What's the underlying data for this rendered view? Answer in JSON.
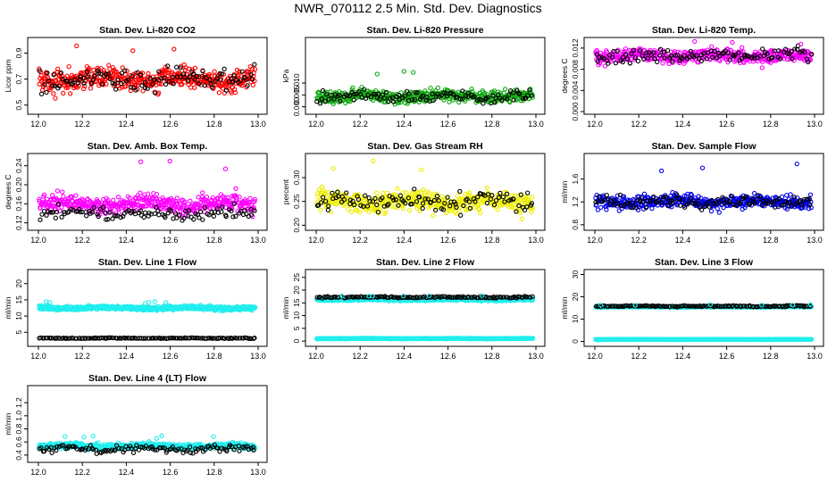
{
  "main_title": "NWR_070112  2.5 Min. Std. Dev. Diagnostics",
  "chart_data": [
    {
      "type": "scatter",
      "title": "Stan. Dev. Li-820 CO2",
      "xlabel": "",
      "ylabel": "Licor ppm",
      "xlim": [
        12.0,
        13.0
      ],
      "ylim": [
        0.45,
        1.0
      ],
      "xticks": [
        "12.0",
        "12.2",
        "12.4",
        "12.6",
        "12.8",
        "13.0"
      ],
      "yticks": [
        "0.5",
        "0.7",
        "0.9"
      ],
      "ytick_values": [
        0.5,
        0.7,
        0.9
      ],
      "color": "#ff0000",
      "series": [
        {
          "name": "main",
          "color": "#ff0000",
          "center": 0.7,
          "spread": 0.09,
          "lo": 0.48,
          "hi": 0.97,
          "count": 430
        },
        {
          "name": "black",
          "color": "#000000",
          "center": 0.7,
          "spread": 0.09,
          "lo": 0.5,
          "hi": 0.95,
          "count": 110
        }
      ]
    },
    {
      "type": "scatter",
      "title": "Stan. Dev. Li-820 Pressure",
      "xlabel": "",
      "ylabel": "kPa",
      "xlim": [
        12.0,
        13.0
      ],
      "ylim": [
        -0.002,
        0.028
      ],
      "xticks": [
        "12.0",
        "12.2",
        "12.4",
        "12.6",
        "12.8",
        "13.0"
      ],
      "yticks": [
        "0.000",
        "0.005",
        "0.010"
      ],
      "ytick_values": [
        0.0,
        0.005,
        0.01
      ],
      "color": "#00aa00",
      "series": [
        {
          "name": "main",
          "color": "#11aa11",
          "center": 0.0045,
          "spread": 0.0028,
          "lo": 0.0,
          "hi": 0.016,
          "count": 430
        },
        {
          "name": "black",
          "color": "#000000",
          "center": 0.0045,
          "spread": 0.0028,
          "lo": 0.0005,
          "hi": 0.014,
          "count": 110
        }
      ]
    },
    {
      "type": "scatter",
      "title": "Stan. Dev. Li-820 Temp.",
      "xlabel": "",
      "ylabel": "degrees C",
      "xlim": [
        12.0,
        13.0
      ],
      "ylim": [
        0.0,
        0.0135
      ],
      "xticks": [
        "12.0",
        "12.2",
        "12.4",
        "12.6",
        "12.8",
        "13.0"
      ],
      "yticks": [
        "0.000",
        "0.004",
        "0.008",
        "0.012"
      ],
      "ytick_values": [
        0.0,
        0.004,
        0.008,
        0.012
      ],
      "color": "#ff00ff",
      "series": [
        {
          "name": "main",
          "color": "#ff00ff",
          "center": 0.0105,
          "spread": 0.0014,
          "lo": 0.007,
          "hi": 0.0135,
          "count": 430
        },
        {
          "name": "black",
          "color": "#000000",
          "center": 0.0105,
          "spread": 0.0014,
          "lo": 0.007,
          "hi": 0.0135,
          "count": 110
        }
      ]
    },
    {
      "type": "scatter",
      "title": "Stan. Dev. Amb. Box Temp.",
      "xlabel": "",
      "ylabel": "degrees C",
      "xlim": [
        12.0,
        13.0
      ],
      "ylim": [
        0.11,
        0.26
      ],
      "xticks": [
        "12.0",
        "12.2",
        "12.4",
        "12.6",
        "12.8",
        "13.0"
      ],
      "yticks": [
        "0.12",
        "0.16",
        "0.20",
        "0.24"
      ],
      "ytick_values": [
        0.12,
        0.16,
        0.2,
        0.24
      ],
      "color": "#ff00ff",
      "series": [
        {
          "name": "main",
          "color": "#ff00ff",
          "center": 0.16,
          "spread": 0.02,
          "lo": 0.12,
          "hi": 0.25,
          "count": 430
        },
        {
          "name": "black",
          "color": "#000000",
          "center": 0.14,
          "spread": 0.015,
          "lo": 0.115,
          "hi": 0.19,
          "count": 110
        }
      ]
    },
    {
      "type": "scatter",
      "title": "Stan. Dev. Gas Stream RH",
      "xlabel": "",
      "ylabel": "percent",
      "xlim": [
        12.0,
        13.0
      ],
      "ylim": [
        0.195,
        0.345
      ],
      "xticks": [
        "12.0",
        "12.2",
        "12.4",
        "12.6",
        "12.8",
        "13.0"
      ],
      "yticks": [
        "0.20",
        "0.25",
        "0.30"
      ],
      "ytick_values": [
        0.2,
        0.25,
        0.3
      ],
      "color": "#ffff00",
      "series": [
        {
          "name": "main",
          "color": "#eeee00",
          "center": 0.25,
          "spread": 0.022,
          "lo": 0.2,
          "hi": 0.34,
          "count": 430
        },
        {
          "name": "black",
          "color": "#000000",
          "center": 0.25,
          "spread": 0.022,
          "lo": 0.2,
          "hi": 0.32,
          "count": 110
        }
      ]
    },
    {
      "type": "scatter",
      "title": "Stan. Dev. Sample Flow",
      "xlabel": "",
      "ylabel": "ml/min",
      "xlim": [
        12.0,
        13.0
      ],
      "ylim": [
        0.75,
        2.0
      ],
      "xticks": [
        "12.0",
        "12.2",
        "12.4",
        "12.6",
        "12.8",
        "13.0"
      ],
      "yticks": [
        "0.8",
        "1.2",
        "1.6"
      ],
      "ytick_values": [
        0.8,
        1.2,
        1.6
      ],
      "color": "#0000ff",
      "series": [
        {
          "name": "main",
          "color": "#0000ee",
          "center": 1.2,
          "spread": 0.12,
          "lo": 0.8,
          "hi": 1.95,
          "count": 430
        },
        {
          "name": "black",
          "color": "#000000",
          "center": 1.2,
          "spread": 0.1,
          "lo": 0.9,
          "hi": 1.7,
          "count": 110
        }
      ]
    },
    {
      "type": "scatter",
      "title": "Stan. Dev. Line 1 Flow",
      "xlabel": "",
      "ylabel": "ml/min",
      "xlim": [
        12.0,
        13.0
      ],
      "ylim": [
        1.5,
        23.5
      ],
      "xticks": [
        "12.0",
        "12.2",
        "12.4",
        "12.6",
        "12.8",
        "13.0"
      ],
      "yticks": [
        "5",
        "10",
        "15",
        "20"
      ],
      "ytick_values": [
        5,
        10,
        15,
        20
      ],
      "color": "#00ffff",
      "series": [
        {
          "name": "main",
          "color": "#22eeee",
          "center": 12.5,
          "spread": 0.6,
          "lo": 10.5,
          "hi": 14.5,
          "count": 700
        },
        {
          "name": "black",
          "color": "#000000",
          "center": 3.2,
          "spread": 0.15,
          "lo": 2.8,
          "hi": 3.8,
          "count": 140
        }
      ]
    },
    {
      "type": "scatter",
      "title": "Stan. Dev. Line 2 Flow",
      "xlabel": "",
      "ylabel": "ml/min",
      "xlim": [
        12.0,
        13.0
      ],
      "ylim": [
        -1,
        27
      ],
      "xticks": [
        "12.0",
        "12.2",
        "12.4",
        "12.6",
        "12.8",
        "13.0"
      ],
      "yticks": [
        "0",
        "5",
        "10",
        "15",
        "20",
        "25"
      ],
      "ytick_values": [
        0,
        5,
        10,
        15,
        20,
        25
      ],
      "color": "#00ffff",
      "series": [
        {
          "name": "main",
          "color": "#22eeee",
          "center": 16.3,
          "spread": 0.5,
          "lo": 14.8,
          "hi": 18.0,
          "count": 600
        },
        {
          "name": "low",
          "color": "#22eeee",
          "center": 1.0,
          "spread": 0.15,
          "lo": 0.5,
          "hi": 1.6,
          "count": 600
        },
        {
          "name": "black",
          "color": "#000000",
          "center": 17.2,
          "spread": 0.35,
          "lo": 16.2,
          "hi": 19.0,
          "count": 140
        }
      ]
    },
    {
      "type": "scatter",
      "title": "Stan. Dev. Line 3 Flow",
      "xlabel": "",
      "ylabel": "ml/min",
      "xlim": [
        12.0,
        13.0
      ],
      "ylim": [
        -1,
        31
      ],
      "xticks": [
        "12.0",
        "12.2",
        "12.4",
        "12.6",
        "12.8",
        "13.0"
      ],
      "yticks": [
        "0",
        "10",
        "20",
        "30"
      ],
      "ytick_values": [
        0,
        10,
        20,
        30
      ],
      "color": "#00ffff",
      "series": [
        {
          "name": "main",
          "color": "#22eeee",
          "center": 15.5,
          "spread": 0.25,
          "lo": 14.8,
          "hi": 16.5,
          "count": 500
        },
        {
          "name": "low",
          "color": "#22eeee",
          "center": 0.9,
          "spread": 0.12,
          "lo": 0.5,
          "hi": 1.4,
          "count": 600
        },
        {
          "name": "black",
          "color": "#000000",
          "center": 15.8,
          "spread": 0.3,
          "lo": 14.5,
          "hi": 17.0,
          "count": 140
        }
      ]
    },
    {
      "type": "scatter",
      "title": "Stan. Dev. Line 4 (LT) Flow",
      "xlabel": "",
      "ylabel": "ml/min",
      "xlim": [
        12.0,
        13.0
      ],
      "ylim": [
        0.33,
        1.42
      ],
      "xticks": [
        "12.0",
        "12.2",
        "12.4",
        "12.6",
        "12.8",
        "13.0"
      ],
      "yticks": [
        "0.4",
        "0.6",
        "0.8",
        "1.0",
        "1.2"
      ],
      "ytick_values": [
        0.4,
        0.6,
        0.8,
        1.0,
        1.2
      ],
      "color": "#00ffff",
      "series": [
        {
          "name": "main",
          "color": "#22eeee",
          "center": 0.535,
          "spread": 0.045,
          "lo": 0.4,
          "hi": 0.7,
          "count": 650
        },
        {
          "name": "black",
          "color": "#000000",
          "center": 0.5,
          "spread": 0.06,
          "lo": 0.38,
          "hi": 0.66,
          "count": 120
        }
      ]
    }
  ]
}
